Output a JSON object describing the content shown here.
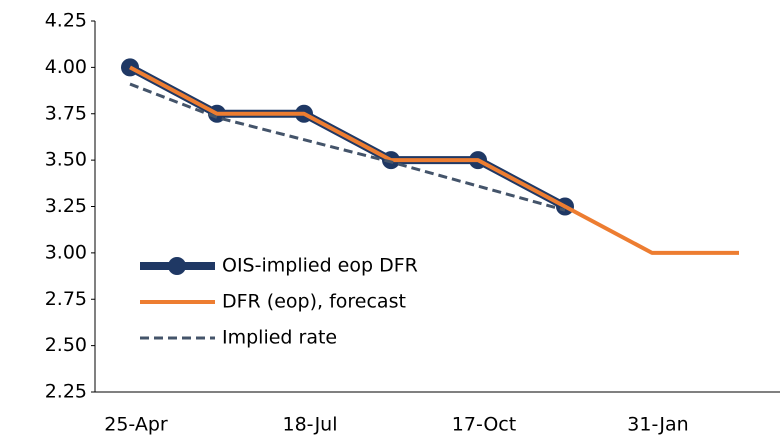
{
  "chart_data": {
    "type": "line",
    "categories": [
      "25-Apr",
      null,
      "18-Jul",
      null,
      "17-Oct",
      null,
      "31-Jan",
      null
    ],
    "series": [
      {
        "name": "OIS-implied eop DFR",
        "color": "#1f3864",
        "marker": "circle",
        "values": [
          4.0,
          3.75,
          3.75,
          3.5,
          3.5,
          3.25,
          null,
          null
        ]
      },
      {
        "name": "DFR (eop), forecast",
        "color": "#ed7d31",
        "values": [
          4.0,
          3.75,
          3.75,
          3.5,
          3.5,
          3.25,
          3.0,
          3.0
        ]
      },
      {
        "name": "Implied rate",
        "color": "#44546a",
        "dash": true,
        "values": [
          3.91,
          3.73,
          3.61,
          3.49,
          3.36,
          3.23,
          null,
          null
        ]
      }
    ],
    "ylim": [
      2.25,
      4.25
    ],
    "yticks": [
      2.25,
      {
        "value": 2.5,
        "label": "2.50"
      },
      2.75,
      {
        "value": 3,
        "label": "3.00"
      },
      3.25,
      {
        "value": 3.5,
        "label": "3.50"
      },
      3.75,
      {
        "value": 4,
        "label": "4.00"
      },
      4.25
    ],
    "grid": false,
    "legend": "lower-left"
  }
}
